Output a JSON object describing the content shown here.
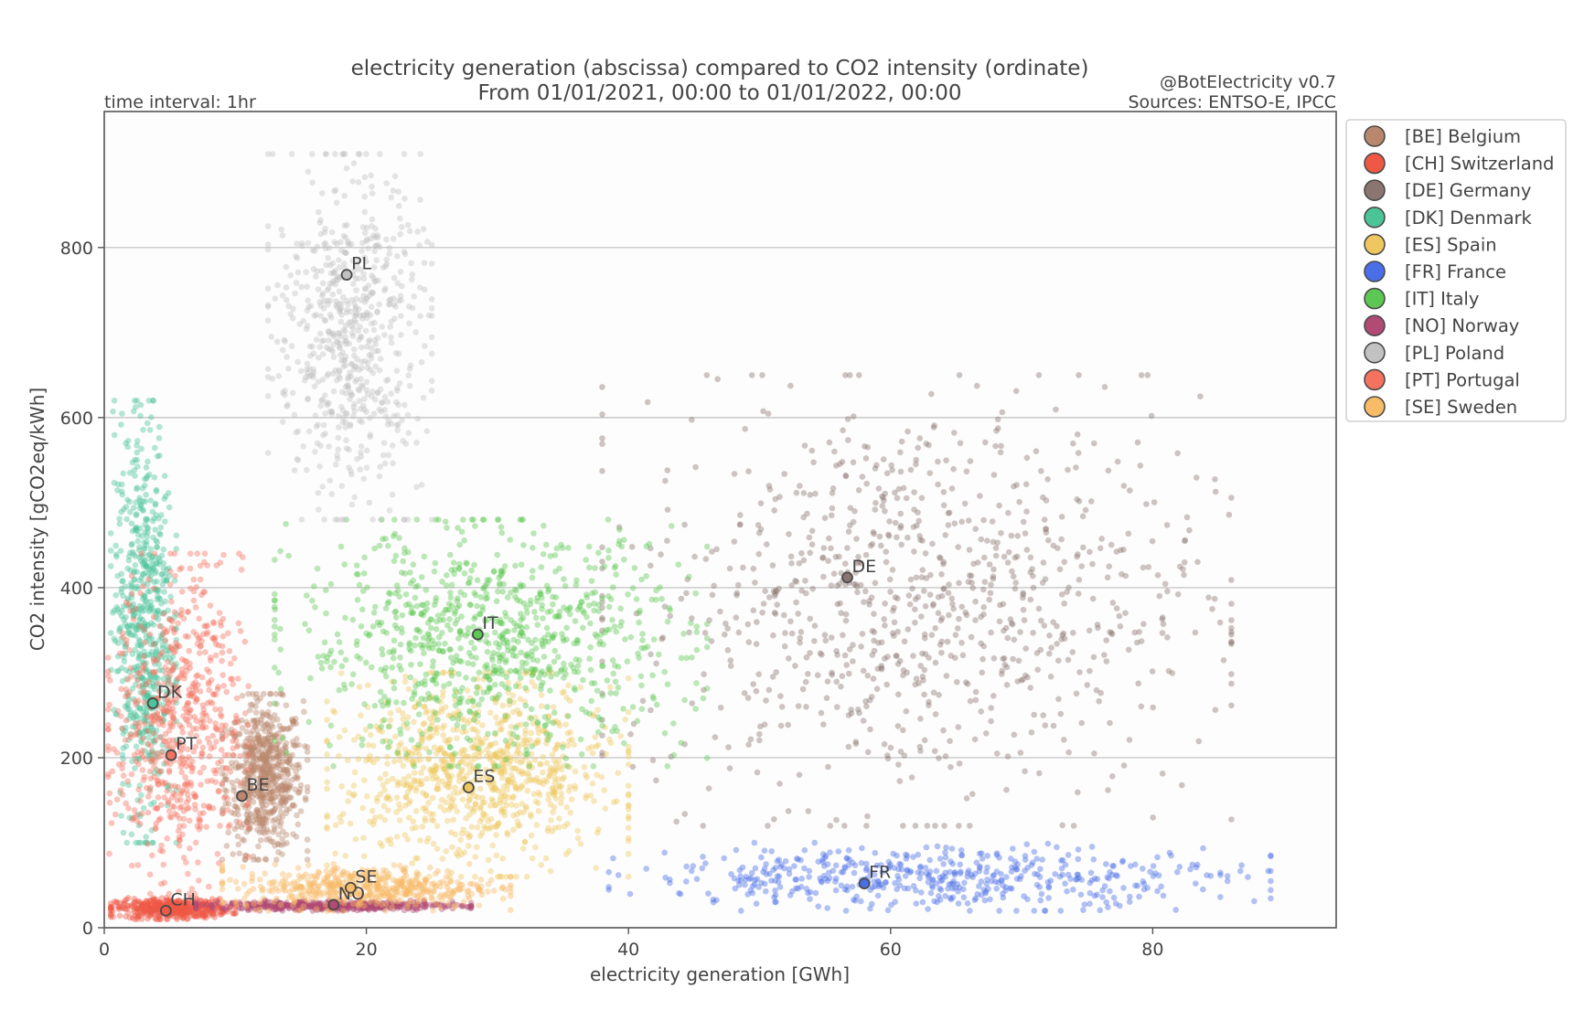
{
  "chart_data": {
    "type": "scatter",
    "title": "electricity generation (abscissa) compared to CO2 intensity (ordinate)",
    "subtitle": "From 01/01/2021, 00:00 to 01/01/2022, 00:00",
    "left_note": "time interval: 1hr",
    "right_note_1": "@BotElectricity v0.7",
    "right_note_2": "Sources: ENTSO-E, IPCC",
    "xlabel": "electricity generation [GWh]",
    "ylabel": "CO2 intensity [gCO2eq/kWh]",
    "xlim": [
      0,
      94
    ],
    "ylim": [
      0,
      960
    ],
    "xticks": [
      0,
      20,
      40,
      60,
      80
    ],
    "yticks": [
      0,
      200,
      400,
      600,
      800
    ],
    "grid": "horizontal",
    "legend_position": "outside-right",
    "series": [
      {
        "code": "BE",
        "legend": "[BE] Belgium",
        "color": "#b9876d",
        "mean": [
          10.5,
          155
        ],
        "cloud": {
          "x": [
            9,
            15.5
          ],
          "y": [
            80,
            275
          ],
          "shape": "tall"
        }
      },
      {
        "code": "CH",
        "legend": "[CH] Switzerland",
        "color": "#ef5844",
        "mean": [
          4.7,
          20
        ],
        "cloud": {
          "x": [
            0.5,
            10
          ],
          "y": [
            10,
            35
          ],
          "shape": "band"
        }
      },
      {
        "code": "DE",
        "legend": "[DE] Germany",
        "color": "#8a7570",
        "mean": [
          56.7,
          412
        ],
        "cloud": {
          "x": [
            38,
            86
          ],
          "y": [
            120,
            650
          ],
          "shape": "broad"
        }
      },
      {
        "code": "DK",
        "legend": "[DK] Denmark",
        "color": "#4cc49a",
        "mean": [
          3.7,
          264
        ],
        "cloud": {
          "x": [
            0.5,
            5.5
          ],
          "y": [
            100,
            620
          ],
          "shape": "tall"
        }
      },
      {
        "code": "ES",
        "legend": "[ES] Spain",
        "color": "#eec760",
        "mean": [
          27.8,
          165
        ],
        "cloud": {
          "x": [
            17,
            40
          ],
          "y": [
            60,
            300
          ],
          "shape": "broad"
        }
      },
      {
        "code": "FR",
        "legend": "[FR] France",
        "color": "#4a6ee8",
        "mean": [
          58,
          52
        ],
        "cloud": {
          "x": [
            38.5,
            89
          ],
          "y": [
            20,
            100
          ],
          "shape": "band"
        }
      },
      {
        "code": "IT",
        "legend": "[IT] Italy",
        "color": "#5cc752",
        "mean": [
          28.5,
          345
        ],
        "cloud": {
          "x": [
            13,
            46
          ],
          "y": [
            190,
            480
          ],
          "shape": "broad"
        }
      },
      {
        "code": "NO",
        "legend": "[NO] Norway",
        "color": "#b14a75",
        "mean": [
          17.5,
          27
        ],
        "cloud": {
          "x": [
            7,
            28
          ],
          "y": [
            20,
            32
          ],
          "shape": "band"
        }
      },
      {
        "code": "PL",
        "legend": "[PL] Poland",
        "color": "#c2c2c2",
        "mean": [
          18.5,
          768
        ],
        "cloud": {
          "x": [
            12.5,
            25
          ],
          "y": [
            480,
            910
          ],
          "shape": "tall"
        }
      },
      {
        "code": "PT",
        "legend": "[PT] Portugal",
        "color": "#f5725f",
        "mean": [
          5.1,
          203
        ],
        "cloud": {
          "x": [
            0.3,
            11
          ],
          "y": [
            40,
            440
          ],
          "shape": "tall"
        }
      },
      {
        "code": "SE",
        "legend": "[SE] Sweden",
        "color": "#f8bb66",
        "mean": [
          18.8,
          47
        ],
        "cloud": {
          "x": [
            9,
            31
          ],
          "y": [
            20,
            75
          ],
          "shape": "band"
        }
      }
    ]
  }
}
